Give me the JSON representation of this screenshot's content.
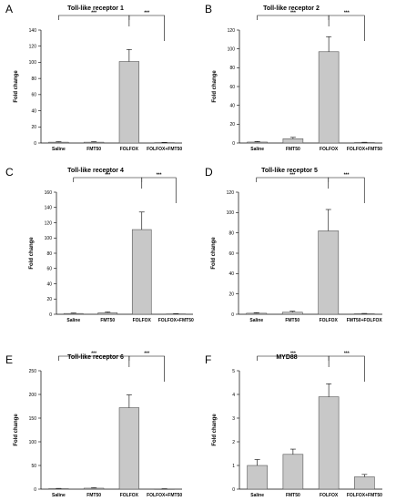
{
  "chart_data": [
    {
      "panel": "A",
      "type": "bar",
      "title": "Toll-like receptor 1",
      "ylabel": "Fold change",
      "categories": [
        "Saline",
        "FMT50",
        "FOLFOX",
        "FOLFOX+FMT50"
      ],
      "values": [
        1.0,
        1.0,
        101,
        0.5
      ],
      "errors": [
        0.6,
        0.6,
        15,
        0.3
      ],
      "ylim": [
        0,
        140
      ],
      "yticks": [
        0,
        20,
        40,
        60,
        80,
        100,
        120,
        140
      ],
      "significance": [
        {
          "from": 0,
          "to": 2,
          "label": "***"
        },
        {
          "from": 2,
          "to": 3,
          "label": "***"
        }
      ]
    },
    {
      "panel": "B",
      "type": "bar",
      "title": "Toll-like receptor 2",
      "ylabel": "Fold change",
      "categories": [
        "Saline",
        "FMT50",
        "FOLFOX",
        "FOLFOX+FMT50"
      ],
      "values": [
        1.0,
        4.5,
        97,
        0.5
      ],
      "errors": [
        0.6,
        1.5,
        16,
        0.3
      ],
      "ylim": [
        0,
        120
      ],
      "yticks": [
        0,
        20,
        40,
        60,
        80,
        100,
        120
      ],
      "significance": [
        {
          "from": 0,
          "to": 2,
          "label": "***"
        },
        {
          "from": 2,
          "to": 3,
          "label": "***"
        }
      ]
    },
    {
      "panel": "C",
      "type": "bar",
      "title": "Toll-like receptor 4",
      "ylabel": "Fold change",
      "categories": [
        "Saline",
        "FMT50",
        "FOLFOX",
        "FOLFOX+FMT50"
      ],
      "values": [
        1.0,
        2.0,
        111,
        0.5
      ],
      "errors": [
        0.6,
        1.0,
        23,
        0.3
      ],
      "ylim": [
        0,
        160
      ],
      "yticks": [
        0,
        20,
        40,
        60,
        80,
        100,
        120,
        140,
        160
      ],
      "significance": [
        {
          "from": 0,
          "to": 2,
          "label": "***"
        },
        {
          "from": 2,
          "to": 3,
          "label": "***"
        }
      ]
    },
    {
      "panel": "D",
      "type": "bar",
      "title": "Toll-like receptor 5",
      "ylabel": "Fold change",
      "categories": [
        "Saline",
        "FMT50",
        "FOLFOX",
        "FMT50+FOLFOX"
      ],
      "values": [
        1.0,
        2.0,
        82,
        0.5
      ],
      "errors": [
        0.6,
        1.0,
        21,
        0.3
      ],
      "ylim": [
        0,
        120
      ],
      "yticks": [
        0,
        20,
        40,
        60,
        80,
        100,
        120
      ],
      "significance": [
        {
          "from": 0,
          "to": 2,
          "label": "***"
        },
        {
          "from": 2,
          "to": 3,
          "label": "***"
        }
      ]
    },
    {
      "panel": "E",
      "type": "bar",
      "title": "Toll-like receptor 6",
      "ylabel": "Fold change",
      "categories": [
        "Saline",
        "FMT50",
        "FOLFOX",
        "FOLFOX+FMT50"
      ],
      "values": [
        1.0,
        2.0,
        172,
        0.5
      ],
      "errors": [
        0.6,
        1.0,
        27,
        0.3
      ],
      "ylim": [
        0,
        250
      ],
      "yticks": [
        0,
        50,
        100,
        150,
        200,
        250
      ],
      "significance": [
        {
          "from": 0,
          "to": 2,
          "label": "***"
        },
        {
          "from": 2,
          "to": 3,
          "label": "***"
        }
      ]
    },
    {
      "panel": "F",
      "type": "bar",
      "title": "MYD88",
      "ylabel": "Fold change",
      "categories": [
        "Saline",
        "FMT50",
        "FOLFOX",
        "FOLFOX+FMT50"
      ],
      "values": [
        1.0,
        1.47,
        3.9,
        0.52
      ],
      "errors": [
        0.25,
        0.22,
        0.55,
        0.1
      ],
      "ylim": [
        0,
        5
      ],
      "yticks": [
        0,
        1,
        2,
        3,
        4,
        5
      ],
      "significance": [
        {
          "from": 0,
          "to": 2,
          "label": "***"
        },
        {
          "from": 2,
          "to": 3,
          "label": "***"
        }
      ]
    }
  ]
}
